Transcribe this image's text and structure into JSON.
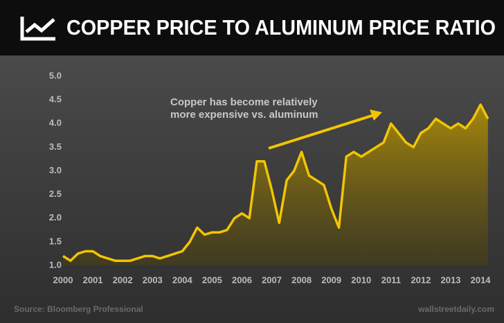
{
  "chart_data": {
    "type": "area_line",
    "title": "COPPER PRICE TO ALUMINUM PRICE RATIO",
    "annotation": [
      "Copper has become relatively",
      "more expensive vs. aluminum"
    ],
    "source": "Source: Bloomberg Professional",
    "credit": "wallstreetdaily.com",
    "x": [
      2000,
      2000.25,
      2000.5,
      2000.75,
      2001,
      2001.25,
      2001.5,
      2001.75,
      2002,
      2002.25,
      2002.5,
      2002.75,
      2003,
      2003.25,
      2003.5,
      2003.75,
      2004,
      2004.25,
      2004.5,
      2004.75,
      2005,
      2005.25,
      2005.5,
      2005.75,
      2006,
      2006.25,
      2006.5,
      2006.75,
      2007,
      2007.25,
      2007.5,
      2007.75,
      2008,
      2008.25,
      2008.5,
      2008.75,
      2009,
      2009.25,
      2009.5,
      2009.75,
      2010,
      2010.25,
      2010.5,
      2010.75,
      2011,
      2011.25,
      2011.5,
      2011.75,
      2012,
      2012.25,
      2012.5,
      2012.75,
      2013,
      2013.25,
      2013.5,
      2013.75,
      2014,
      2014.25
    ],
    "series": [
      {
        "color": "#f2c500",
        "values": [
          1.2,
          1.1,
          1.25,
          1.3,
          1.3,
          1.2,
          1.15,
          1.1,
          1.1,
          1.1,
          1.15,
          1.2,
          1.2,
          1.15,
          1.2,
          1.25,
          1.3,
          1.5,
          1.8,
          1.65,
          1.7,
          1.7,
          1.75,
          2.0,
          2.1,
          2.0,
          3.2,
          3.2,
          2.6,
          1.9,
          2.8,
          3.0,
          3.4,
          2.9,
          2.8,
          2.7,
          2.2,
          1.8,
          3.3,
          3.4,
          3.3,
          3.4,
          3.5,
          3.6,
          4.0,
          3.8,
          3.6,
          3.5,
          3.8,
          3.9,
          4.1,
          4.0,
          3.9,
          4.0,
          3.9,
          4.1,
          4.4,
          4.1
        ]
      }
    ],
    "xlim": [
      2000,
      2014.3
    ],
    "xticks": [
      2000,
      2001,
      2002,
      2003,
      2004,
      2005,
      2006,
      2007,
      2008,
      2009,
      2010,
      2011,
      2012,
      2013,
      2014
    ],
    "ylim": [
      1.0,
      5.0
    ],
    "yticks": [
      {
        "value": 1.0,
        "label": "1.0"
      },
      {
        "value": 1.5,
        "label": "1.5"
      },
      {
        "value": 2.0,
        "label": "2.0"
      },
      {
        "value": 2.5,
        "label": "2.5"
      },
      {
        "value": 3.0,
        "label": "3.0"
      },
      {
        "value": 3.5,
        "label": "3.5"
      },
      {
        "value": 4.0,
        "label": "4.0"
      },
      {
        "value": 4.5,
        "label": "4.5"
      },
      {
        "value": 5.0,
        "label": "5.0"
      }
    ]
  }
}
